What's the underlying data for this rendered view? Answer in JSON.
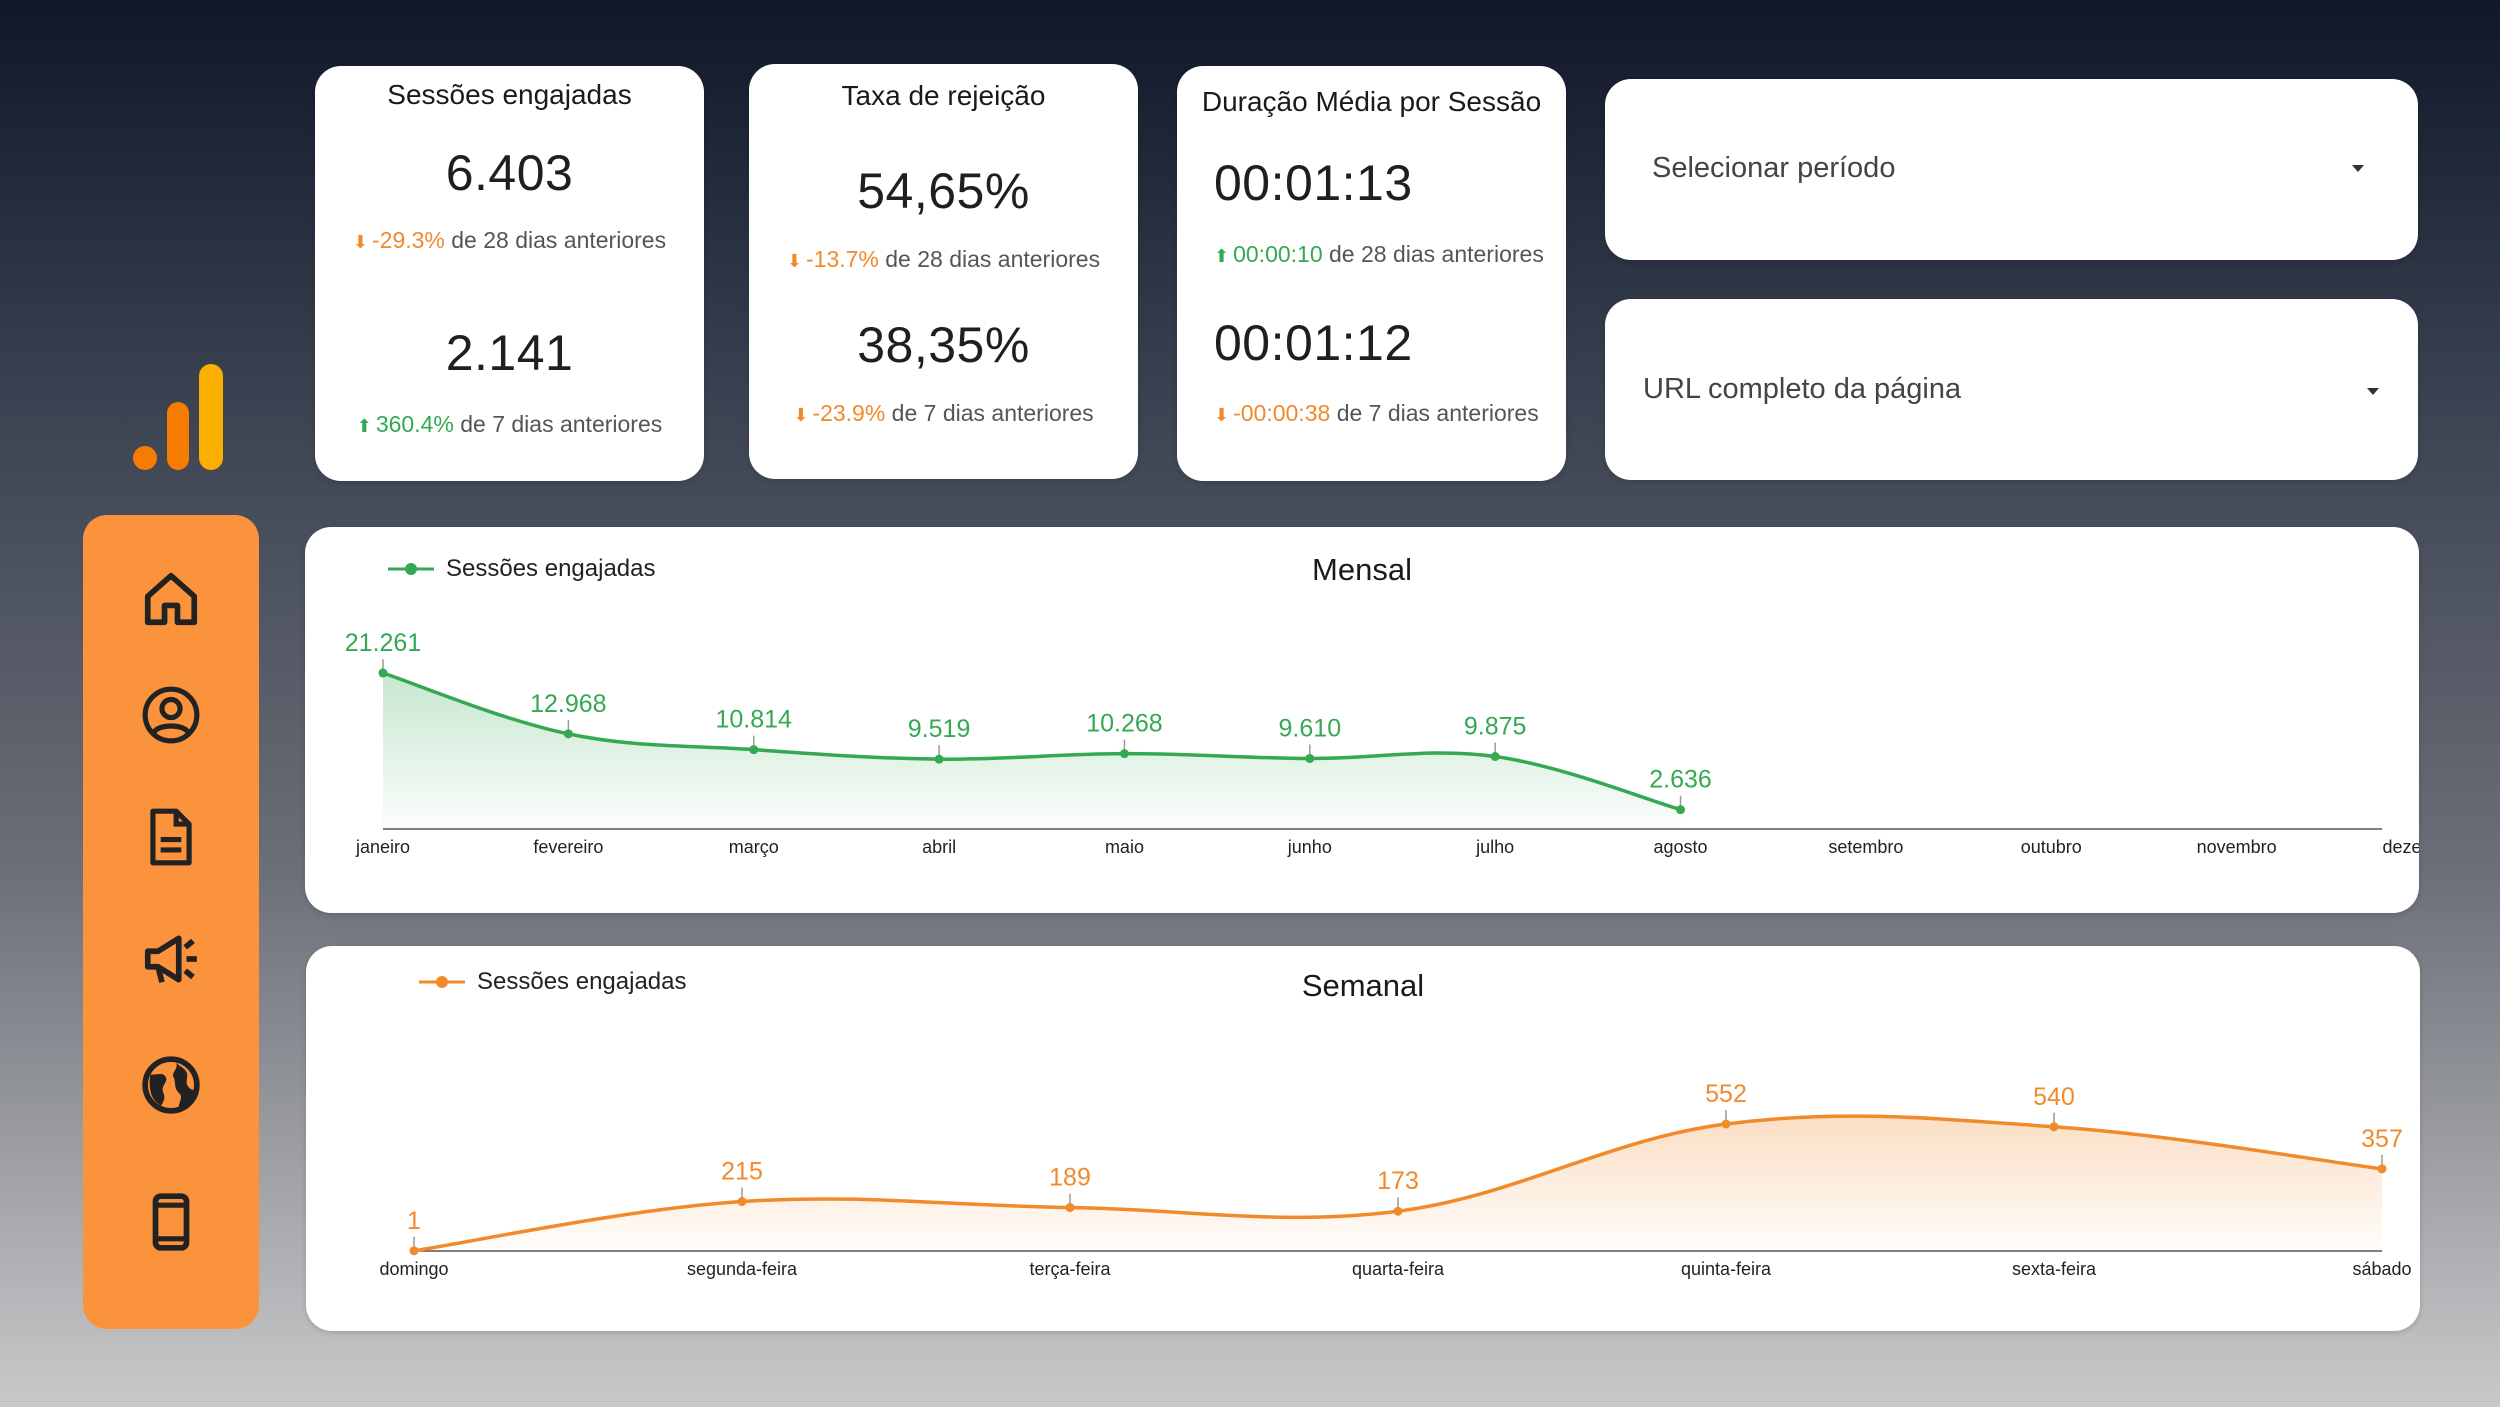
{
  "kpis": [
    {
      "title": "Sessões engajadas",
      "value1": "6.403",
      "cmp1": {
        "arrow": "⬇",
        "delta": "-29.3%",
        "text": "de 28 dias anteriores",
        "trend": "neg"
      },
      "value2": "2.141",
      "cmp2": {
        "arrow": "⬆",
        "delta": "360.4%",
        "text": "de 7 dias anteriores",
        "trend": "pos"
      }
    },
    {
      "title": "Taxa de rejeição",
      "value1": "54,65%",
      "cmp1": {
        "arrow": "⬇",
        "delta": "-13.7%",
        "text": "de 28 dias anteriores",
        "trend": "neg"
      },
      "value2": "38,35%",
      "cmp2": {
        "arrow": "⬇",
        "delta": "-23.9%",
        "text": "de 7 dias anteriores",
        "trend": "neg"
      }
    },
    {
      "title": "Duração Média por Sessão",
      "value1": "00:01:13",
      "cmp1": {
        "arrow": "⬆",
        "delta": "00:00:10",
        "text": "de 28 dias anteriores",
        "trend": "pos"
      },
      "value2": "00:01:12",
      "cmp2": {
        "arrow": "⬇",
        "delta": "-00:00:38",
        "text": "de 7 dias anteriores",
        "trend": "neg"
      }
    }
  ],
  "filters": {
    "period_label": "Selecionar período",
    "url_label": "URL completo da página"
  },
  "sidebar": {
    "items": [
      {
        "icon": "home-icon"
      },
      {
        "icon": "user-circle-icon"
      },
      {
        "icon": "document-icon"
      },
      {
        "icon": "megaphone-icon"
      },
      {
        "icon": "globe-icon"
      },
      {
        "icon": "mobile-icon"
      }
    ],
    "accent": "#fb923c"
  },
  "colors": {
    "green": "#34a853",
    "orange": "#f08a2b"
  },
  "chart_data": [
    {
      "type": "area",
      "title": "Mensal",
      "legend": "Sessões engajadas",
      "legend_position": "top-left",
      "categories": [
        "janeiro",
        "fevereiro",
        "março",
        "abril",
        "maio",
        "junho",
        "julho",
        "agosto",
        "setembro",
        "outubro",
        "novembro",
        "dezemb..."
      ],
      "series": [
        {
          "name": "Sessões engajadas",
          "values": [
            21261,
            12968,
            10814,
            9519,
            10268,
            9610,
            9875,
            2636
          ]
        }
      ],
      "labels": [
        "21.261",
        "12.968",
        "10.814",
        "9.519",
        "10.268",
        "9.610",
        "9.875",
        "2.636"
      ],
      "ylim": [
        0,
        21261
      ],
      "grid": false,
      "color": "#34a853"
    },
    {
      "type": "area",
      "title": "Semanal",
      "legend": "Sessões engajadas",
      "legend_position": "top-left",
      "categories": [
        "domingo",
        "segunda-feira",
        "terça-feira",
        "quarta-feira",
        "quinta-feira",
        "sexta-feira",
        "sábado"
      ],
      "series": [
        {
          "name": "Sessões engajadas",
          "values": [
            1,
            215,
            189,
            173,
            552,
            540,
            357
          ]
        }
      ],
      "labels": [
        "1",
        "215",
        "189",
        "173",
        "552",
        "540",
        "357"
      ],
      "ylim": [
        0,
        552
      ],
      "grid": false,
      "color": "#f08a2b"
    }
  ]
}
